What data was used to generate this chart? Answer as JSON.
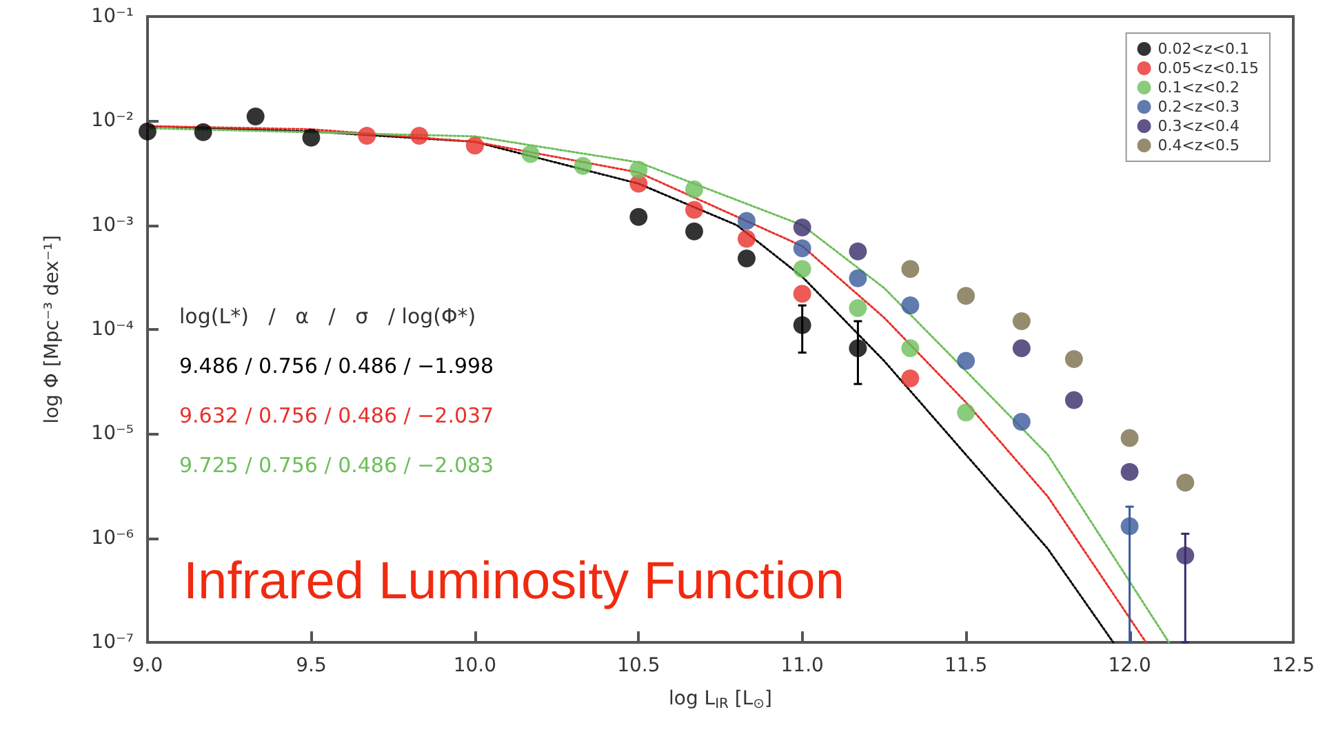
{
  "chart_data": {
    "type": "scatter",
    "title": "Infrared Luminosity Function",
    "xlabel": "log L$_{IR}$ [L$_{⊙}$]",
    "ylabel": "log Φ [Mpc⁻³ dex⁻¹]",
    "log": "y",
    "grid": false,
    "legend": "top right",
    "marker": "circle",
    "xlim": [
      9.0,
      12.5
    ],
    "xticks": [
      {
        "value": 9,
        "label": "9.0"
      },
      9.5,
      {
        "value": 10,
        "label": "10.0"
      },
      10.5,
      {
        "value": 11,
        "label": "11.0"
      },
      11.5,
      {
        "value": 12,
        "label": "12.0"
      },
      12.5
    ],
    "ylim": [
      1e-07,
      0.1
    ],
    "yticks": [
      {
        "value": 1e-07,
        "label": "10⁻⁷"
      },
      {
        "value": 1e-06,
        "label": "10⁻⁶"
      },
      {
        "value": 1e-05,
        "label": "10⁻⁵"
      },
      {
        "value": 0.0001,
        "label": "10⁻⁴"
      },
      {
        "value": 0.001,
        "label": "10⁻³"
      },
      {
        "value": 0.01,
        "label": "10⁻²"
      },
      {
        "value": 0.1,
        "label": "10⁻¹"
      }
    ],
    "annotations": [
      "log(L*)   /   α   /   σ   / log(Φ*)",
      "9.486 / 0.756 / 0.486 / −1.998",
      "9.632 / 0.756 / 0.486 / −2.037",
      "9.725 / 0.756 / 0.486 / −2.083"
    ],
    "series": [
      {
        "name": "0.02<z<0.1",
        "color": "#000000",
        "x": [
          9.0,
          9.17,
          9.33,
          9.5,
          10.33,
          10.5,
          10.67,
          10.83,
          11.0,
          11.17
        ],
        "values": [
          0.0079,
          0.0078,
          0.011,
          0.0069,
          null,
          0.0012,
          0.00087,
          0.00048,
          0.00011,
          6.6e-05
        ],
        "errors": [
          null,
          null,
          null,
          null,
          null,
          null,
          null,
          null,
          [
            6e-05,
            0.00017
          ],
          [
            3e-05,
            0.00012
          ]
        ]
      },
      {
        "name": "0.05<z<0.15",
        "color": "#e8302a",
        "x": [
          9.67,
          9.83,
          10.0,
          10.5,
          10.67,
          10.83,
          11.0,
          11.17,
          11.33
        ],
        "values": [
          0.0072,
          0.0072,
          0.0058,
          0.0025,
          0.0014,
          0.00074,
          0.00022,
          null,
          3.4e-05
        ]
      },
      {
        "name": "0.1<z<0.2",
        "color": "#6cbf5a",
        "x": [
          10.17,
          10.33,
          10.5,
          10.67,
          11.0,
          11.17,
          11.33,
          11.5
        ],
        "values": [
          0.0048,
          0.0037,
          0.0034,
          0.0022,
          0.00038,
          0.00016,
          6.6e-05,
          1.6e-05
        ]
      },
      {
        "name": "0.2<z<0.3",
        "color": "#3a5a9a",
        "x": [
          10.83,
          11.0,
          11.17,
          11.33,
          11.5,
          11.67,
          12.0
        ],
        "values": [
          0.0011,
          0.0006,
          0.00031,
          0.00017,
          5e-05,
          1.3e-05,
          1.3e-06
        ],
        "errors": [
          null,
          null,
          null,
          null,
          null,
          null,
          [
            1e-07,
            2e-06
          ]
        ]
      },
      {
        "name": "0.3<z<0.4",
        "color": "#3a2a6a",
        "x": [
          11.0,
          11.17,
          11.67,
          11.83,
          12.0,
          12.17
        ],
        "values": [
          0.00095,
          0.00056,
          6.6e-05,
          2.1e-05,
          4.3e-06,
          6.8e-07
        ],
        "errors": [
          null,
          null,
          null,
          null,
          null,
          [
            1e-07,
            1.1e-06
          ]
        ]
      },
      {
        "name": "0.4<z<0.5",
        "color": "#7a6e4a",
        "x": [
          11.33,
          11.5,
          11.67,
          11.83,
          12.0,
          12.17
        ],
        "values": [
          0.00038,
          0.00021,
          0.00012,
          5.2e-05,
          9.1e-06,
          3.4e-06
        ]
      },
      {
        "type": "line",
        "line_style": "dotted",
        "marker": "none",
        "color": "#000000",
        "x": [
          9.0,
          9.5,
          10.0,
          10.5,
          10.8,
          11.0,
          11.25,
          11.5,
          11.75,
          11.95
        ],
        "values": [
          0.0089,
          0.0079,
          0.0063,
          0.0025,
          0.001,
          0.00032,
          5e-05,
          6.3e-06,
          7.9e-07,
          1e-07
        ]
      },
      {
        "type": "line",
        "line_style": "dotted",
        "marker": "none",
        "color": "#e8302a",
        "x": [
          9.0,
          9.5,
          10.0,
          10.5,
          11.0,
          11.25,
          11.5,
          11.75,
          12.05
        ],
        "values": [
          0.0089,
          0.0083,
          0.0063,
          0.0032,
          0.00063,
          0.00013,
          2e-05,
          2.5e-06,
          1e-07
        ]
      },
      {
        "type": "line",
        "line_style": "dotted",
        "marker": "none",
        "color": "#6cbf5a",
        "x": [
          9.0,
          10.0,
          10.5,
          11.0,
          11.25,
          11.5,
          11.75,
          12.12
        ],
        "values": [
          0.0085,
          0.0071,
          0.004,
          0.001,
          0.00025,
          4e-05,
          6.3e-06,
          1e-07
        ]
      }
    ]
  }
}
